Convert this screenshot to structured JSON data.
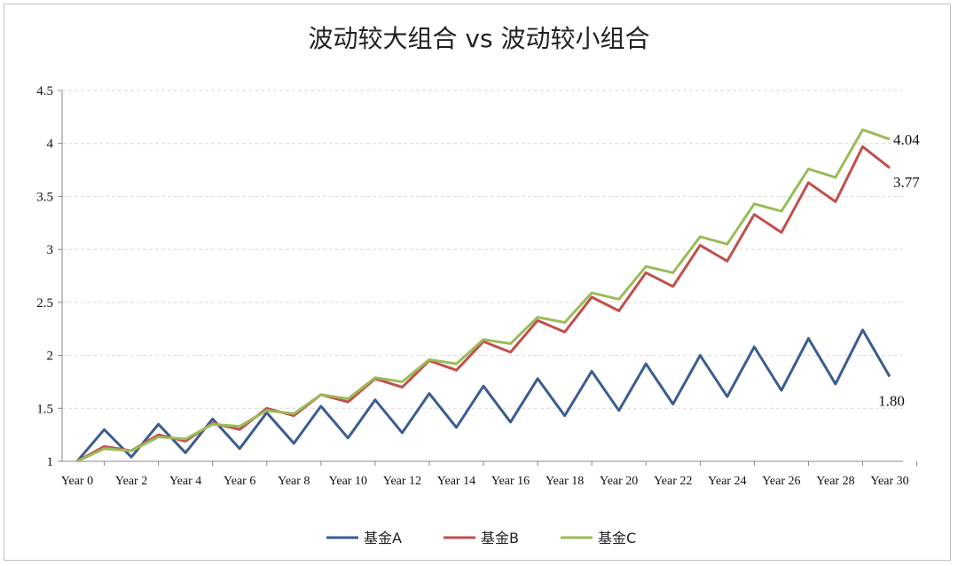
{
  "chart_data": {
    "type": "line",
    "title": "波动较大组合 vs 波动较小组合",
    "xlabel": "",
    "ylabel": "",
    "ylim": [
      1,
      4.5
    ],
    "yticks": [
      "1",
      "1.5",
      "2",
      "2.5",
      "3",
      "3.5",
      "4",
      "4.5"
    ],
    "grid": true,
    "legend": "bottom",
    "x_tick_labels": [
      "Year 0",
      "Year 2",
      "Year 4",
      "Year 6",
      "Year 8",
      "Year 10",
      "Year 12",
      "Year 14",
      "Year 16",
      "Year 18",
      "Year 20",
      "Year 22",
      "Year 24",
      "Year 26",
      "Year 28",
      "Year 30"
    ],
    "x": [
      0,
      1,
      2,
      3,
      4,
      5,
      6,
      7,
      8,
      9,
      10,
      11,
      12,
      13,
      14,
      15,
      16,
      17,
      18,
      19,
      20,
      21,
      22,
      23,
      24,
      25,
      26,
      27,
      28,
      29,
      30
    ],
    "series": [
      {
        "name": "基金A",
        "color": "#3b5d8f",
        "end_label": "1.80",
        "values": [
          1.0,
          1.3,
          1.04,
          1.35,
          1.08,
          1.4,
          1.12,
          1.46,
          1.17,
          1.52,
          1.22,
          1.58,
          1.27,
          1.64,
          1.32,
          1.71,
          1.37,
          1.78,
          1.43,
          1.85,
          1.48,
          1.92,
          1.54,
          2.0,
          1.61,
          2.08,
          1.67,
          2.16,
          1.73,
          2.24,
          1.8
        ]
      },
      {
        "name": "基金B",
        "color": "#c0504d",
        "end_label": "3.77",
        "values": [
          1.0,
          1.14,
          1.1,
          1.25,
          1.19,
          1.36,
          1.3,
          1.5,
          1.43,
          1.63,
          1.56,
          1.78,
          1.7,
          1.95,
          1.86,
          2.13,
          2.03,
          2.33,
          2.22,
          2.55,
          2.42,
          2.78,
          2.65,
          3.04,
          2.89,
          3.33,
          3.16,
          3.63,
          3.45,
          3.97,
          3.77
        ]
      },
      {
        "name": "基金C",
        "color": "#9bbb59",
        "end_label": "4.04",
        "values": [
          1.0,
          1.12,
          1.1,
          1.23,
          1.21,
          1.35,
          1.33,
          1.48,
          1.45,
          1.63,
          1.59,
          1.79,
          1.75,
          1.96,
          1.92,
          2.15,
          2.11,
          2.36,
          2.31,
          2.59,
          2.53,
          2.84,
          2.78,
          3.12,
          3.05,
          3.43,
          3.36,
          3.76,
          3.68,
          4.13,
          4.04
        ]
      }
    ]
  }
}
